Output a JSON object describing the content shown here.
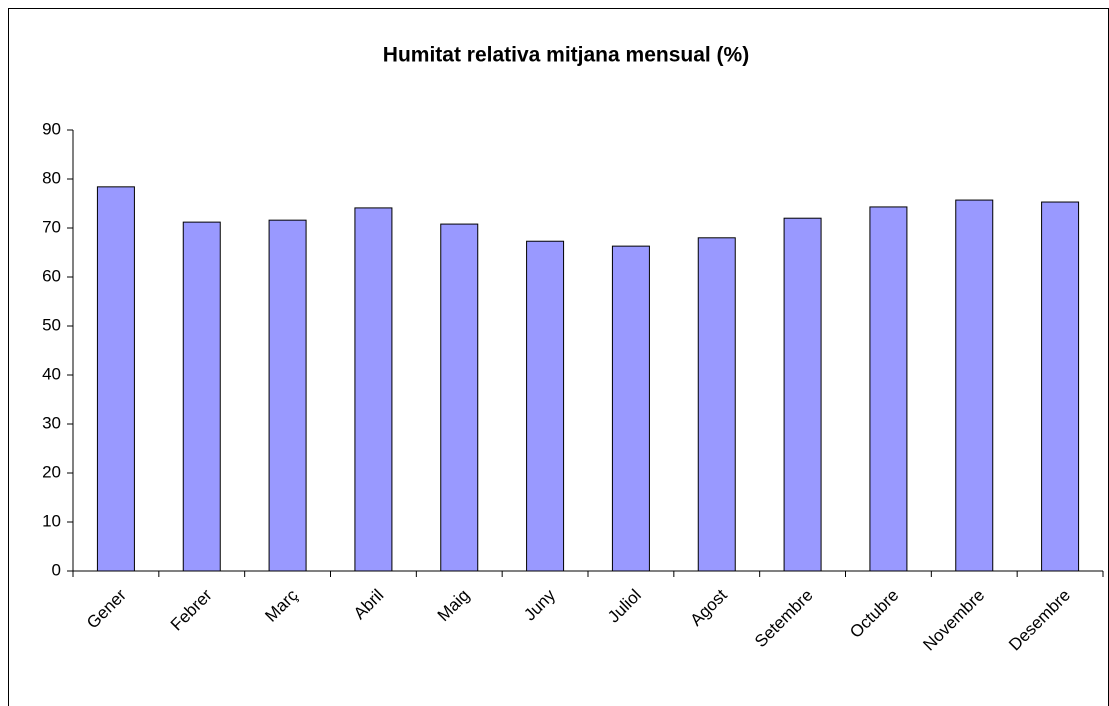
{
  "chart_data": {
    "type": "bar",
    "title": "Humitat relativa mitjana mensual (%)",
    "categories": [
      "Gener",
      "Febrer",
      "Març",
      "Abril",
      "Maig",
      "Juny",
      "Juliol",
      "Agost",
      "Setembre",
      "Octubre",
      "Novembre",
      "Desembre"
    ],
    "values": [
      78.4,
      71.2,
      71.6,
      74.1,
      70.8,
      67.3,
      66.3,
      68.0,
      72.0,
      74.3,
      75.7,
      75.3
    ],
    "color": "#9999ff",
    "ylim": [
      0,
      90
    ],
    "yticks": [
      0,
      10,
      20,
      30,
      40,
      50,
      60,
      70,
      80,
      90
    ],
    "grid": false
  }
}
